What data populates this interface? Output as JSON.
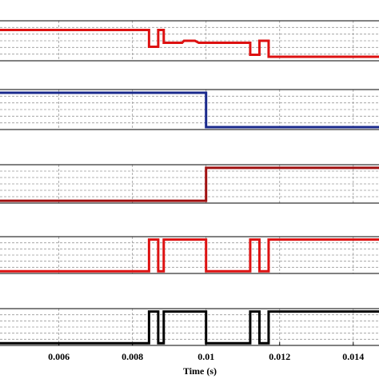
{
  "chart_data": {
    "type": "line",
    "xlabel": "Time (s)",
    "xlim": [
      0.0044,
      0.0147
    ],
    "x_ticks": [
      0.006,
      0.008,
      0.01,
      0.012,
      0.014
    ],
    "x_tick_labels": [
      "0.006",
      "0.008",
      "0.01",
      "0.012",
      "0.014"
    ],
    "grid": true,
    "ylim": [
      0,
      1
    ],
    "panels": [
      {
        "color": "#dd1111",
        "points": [
          [
            0.0044,
            0.77
          ],
          [
            0.00845,
            0.77
          ],
          [
            0.00845,
            0.35
          ],
          [
            0.0087,
            0.35
          ],
          [
            0.0087,
            0.77
          ],
          [
            0.00885,
            0.77
          ],
          [
            0.00885,
            0.45
          ],
          [
            0.00935,
            0.45
          ],
          [
            0.0094,
            0.5
          ],
          [
            0.0097,
            0.5
          ],
          [
            0.0098,
            0.45
          ],
          [
            0.0112,
            0.45
          ],
          [
            0.0112,
            0.15
          ],
          [
            0.01145,
            0.15
          ],
          [
            0.01145,
            0.5
          ],
          [
            0.0117,
            0.5
          ],
          [
            0.0117,
            0.1
          ],
          [
            0.0147,
            0.1
          ]
        ]
      },
      {
        "color": "#1a2a8c",
        "points": [
          [
            0.0044,
            0.92
          ],
          [
            0.01,
            0.92
          ],
          [
            0.01,
            0.06
          ],
          [
            0.0147,
            0.06
          ]
        ]
      },
      {
        "color": "#a01010",
        "points": [
          [
            0.0044,
            0.06
          ],
          [
            0.01,
            0.06
          ],
          [
            0.01,
            0.92
          ],
          [
            0.0147,
            0.92
          ]
        ]
      },
      {
        "color": "#dd1111",
        "points": [
          [
            0.0044,
            0.06
          ],
          [
            0.00845,
            0.06
          ],
          [
            0.00845,
            0.92
          ],
          [
            0.0087,
            0.92
          ],
          [
            0.0087,
            0.06
          ],
          [
            0.00885,
            0.06
          ],
          [
            0.00885,
            0.92
          ],
          [
            0.01,
            0.92
          ],
          [
            0.01,
            0.06
          ],
          [
            0.0112,
            0.06
          ],
          [
            0.0112,
            0.92
          ],
          [
            0.01145,
            0.92
          ],
          [
            0.01145,
            0.06
          ],
          [
            0.0117,
            0.06
          ],
          [
            0.0117,
            0.92
          ],
          [
            0.0147,
            0.92
          ]
        ]
      },
      {
        "color": "#000000",
        "points": [
          [
            0.0044,
            0.06
          ],
          [
            0.00845,
            0.06
          ],
          [
            0.00845,
            0.92
          ],
          [
            0.0087,
            0.92
          ],
          [
            0.0087,
            0.06
          ],
          [
            0.00885,
            0.06
          ],
          [
            0.00885,
            0.92
          ],
          [
            0.01,
            0.92
          ],
          [
            0.01,
            0.06
          ],
          [
            0.0112,
            0.06
          ],
          [
            0.0112,
            0.92
          ],
          [
            0.01145,
            0.92
          ],
          [
            0.01145,
            0.06
          ],
          [
            0.0117,
            0.06
          ],
          [
            0.0117,
            0.92
          ],
          [
            0.0147,
            0.92
          ]
        ]
      }
    ]
  }
}
